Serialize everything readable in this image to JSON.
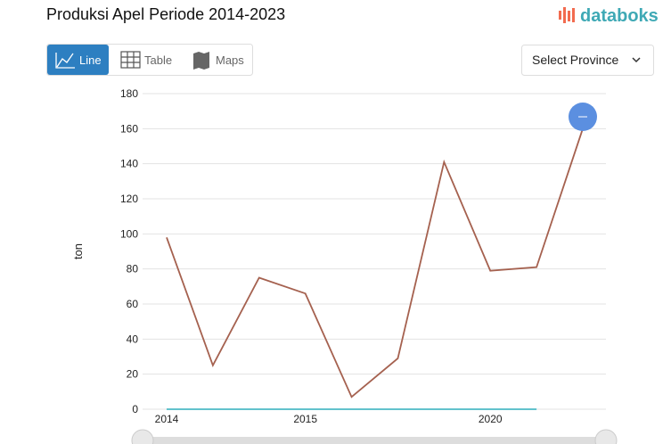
{
  "header": {
    "title": "Produksi Apel Periode 2014-2023",
    "logo": "databoks"
  },
  "controls": {
    "tabs": [
      "Line",
      "Table",
      "Maps"
    ],
    "select": "Select Province"
  },
  "chart_data": {
    "type": "line",
    "categories": [
      "2014",
      null,
      null,
      "2015",
      null,
      null,
      null,
      "2020",
      null,
      null
    ],
    "series": [
      {
        "color": "#a5614f",
        "values": [
          98,
          25,
          75,
          66,
          7,
          29,
          141,
          79,
          81,
          160
        ]
      },
      {
        "color": "#4bbac4",
        "values": [
          0,
          0,
          0,
          0,
          0,
          0,
          0,
          0,
          0,
          null
        ]
      }
    ],
    "y_label": "ton",
    "ylim": [
      0,
      180
    ],
    "yticks": [
      0,
      20,
      40,
      60,
      80,
      100,
      120,
      140,
      160,
      180
    ],
    "grid": true
  }
}
